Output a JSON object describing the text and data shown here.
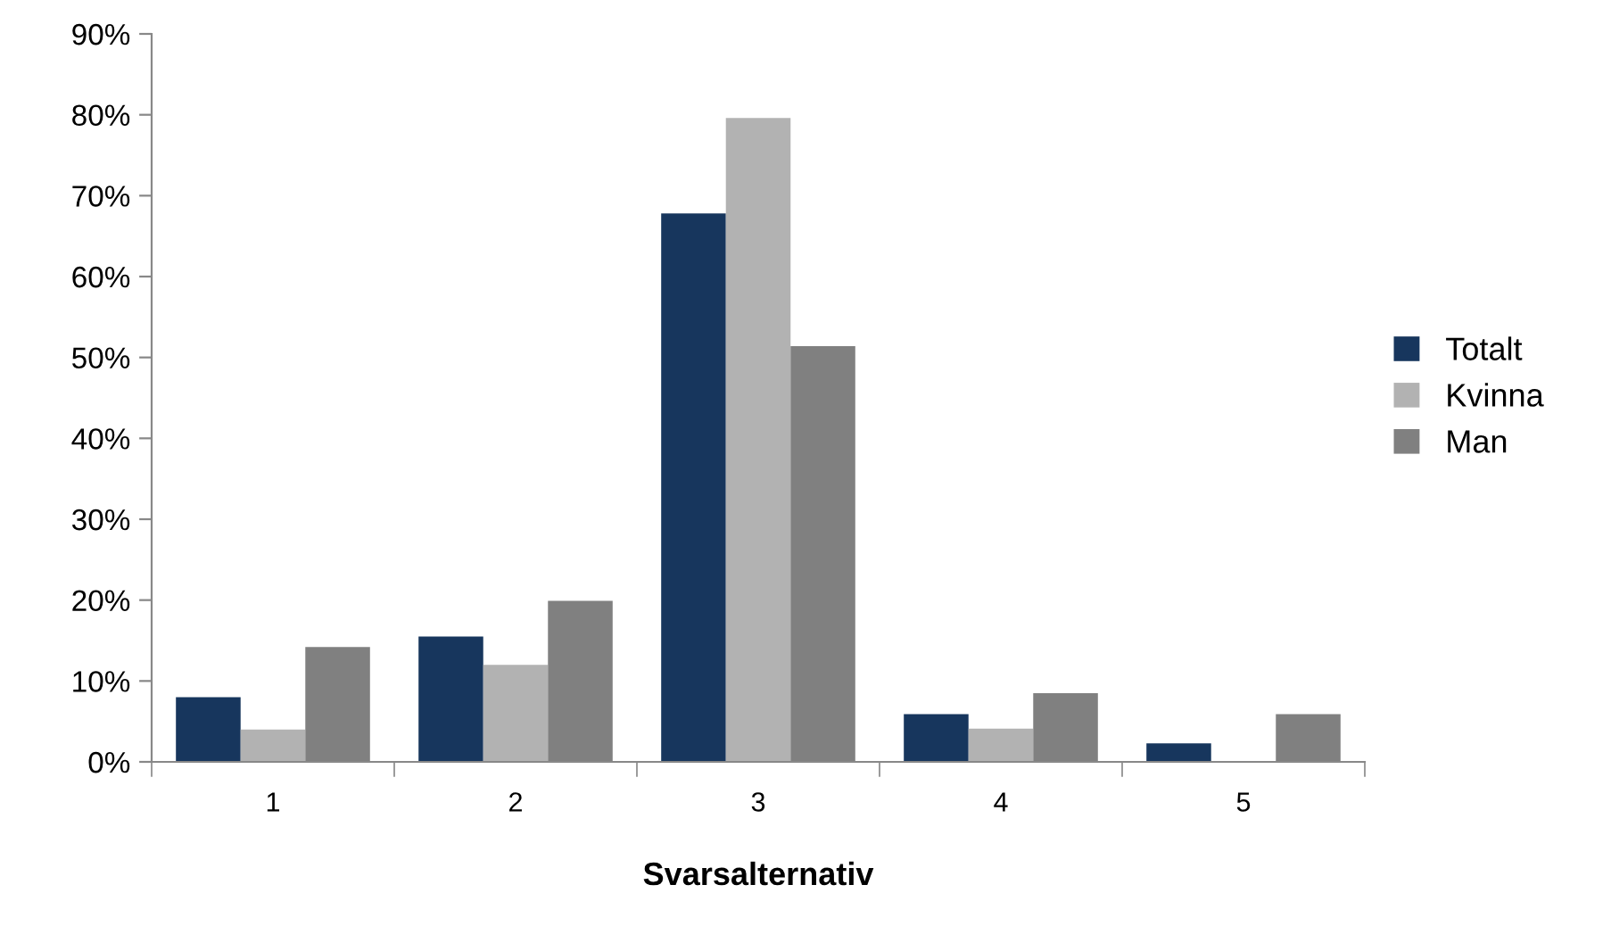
{
  "chart_data": {
    "type": "bar",
    "xlabel": "Svarsalternativ",
    "categories": [
      "1",
      "2",
      "3",
      "4",
      "5"
    ],
    "series": [
      {
        "name": "Totalt",
        "color": "#17365d",
        "values": [
          8.0,
          15.5,
          67.8,
          5.9,
          2.3
        ]
      },
      {
        "name": "Kvinna",
        "color": "#b2b2b2",
        "values": [
          4.0,
          12.0,
          79.6,
          4.1,
          0
        ]
      },
      {
        "name": "Man",
        "color": "#808080",
        "values": [
          14.2,
          19.9,
          51.4,
          8.5,
          5.9
        ]
      }
    ],
    "ylim": [
      0,
      90
    ],
    "yticks": [
      {
        "value": 0,
        "label": "0%"
      },
      {
        "value": 10,
        "label": "10%"
      },
      {
        "value": 20,
        "label": "20%"
      },
      {
        "value": 30,
        "label": "30%"
      },
      {
        "value": 40,
        "label": "40%"
      },
      {
        "value": 50,
        "label": "50%"
      },
      {
        "value": 60,
        "label": "60%"
      },
      {
        "value": 70,
        "label": "70%"
      },
      {
        "value": 80,
        "label": "80%"
      },
      {
        "value": 90,
        "label": "90%"
      }
    ],
    "grid": false,
    "legend": "right"
  }
}
